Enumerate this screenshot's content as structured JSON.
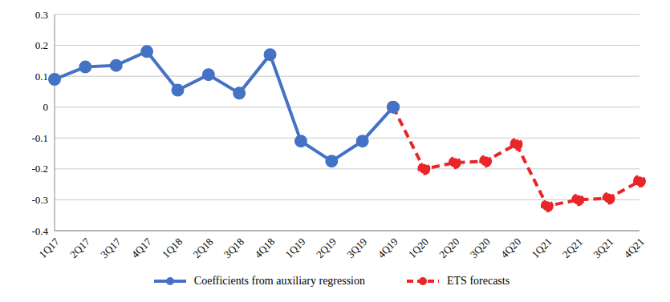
{
  "chart_data": {
    "type": "line",
    "categories": [
      "1Q17",
      "2Q17",
      "3Q17",
      "4Q17",
      "1Q18",
      "2Q18",
      "3Q18",
      "4Q18",
      "1Q19",
      "2Q19",
      "3Q19",
      "4Q19",
      "1Q20",
      "2Q20",
      "3Q20",
      "4Q20",
      "1Q21",
      "2Q21",
      "3Q21",
      "4Q21"
    ],
    "series": [
      {
        "name": "Coefficients from auxiliary regression",
        "color": "#4472c4",
        "marker": "circle",
        "line_style": "solid",
        "values": [
          0.09,
          0.13,
          0.135,
          0.18,
          0.055,
          0.105,
          0.045,
          0.17,
          -0.11,
          -0.175,
          -0.11,
          0.0,
          null,
          null,
          null,
          null,
          null,
          null,
          null,
          null
        ]
      },
      {
        "name": "ETS forecasts",
        "color": "#e8262a",
        "marker": "circle",
        "line_style": "dashed",
        "values": [
          null,
          null,
          null,
          null,
          null,
          null,
          null,
          null,
          null,
          null,
          null,
          0.0,
          -0.2,
          -0.18,
          -0.175,
          -0.12,
          -0.32,
          -0.3,
          -0.295,
          -0.24
        ]
      }
    ],
    "ylim": [
      -0.4,
      0.3
    ],
    "yticks": [
      -0.4,
      -0.3,
      -0.2,
      -0.1,
      0,
      0.1,
      0.2,
      0.3
    ],
    "grid": true,
    "legend": "bottom"
  }
}
